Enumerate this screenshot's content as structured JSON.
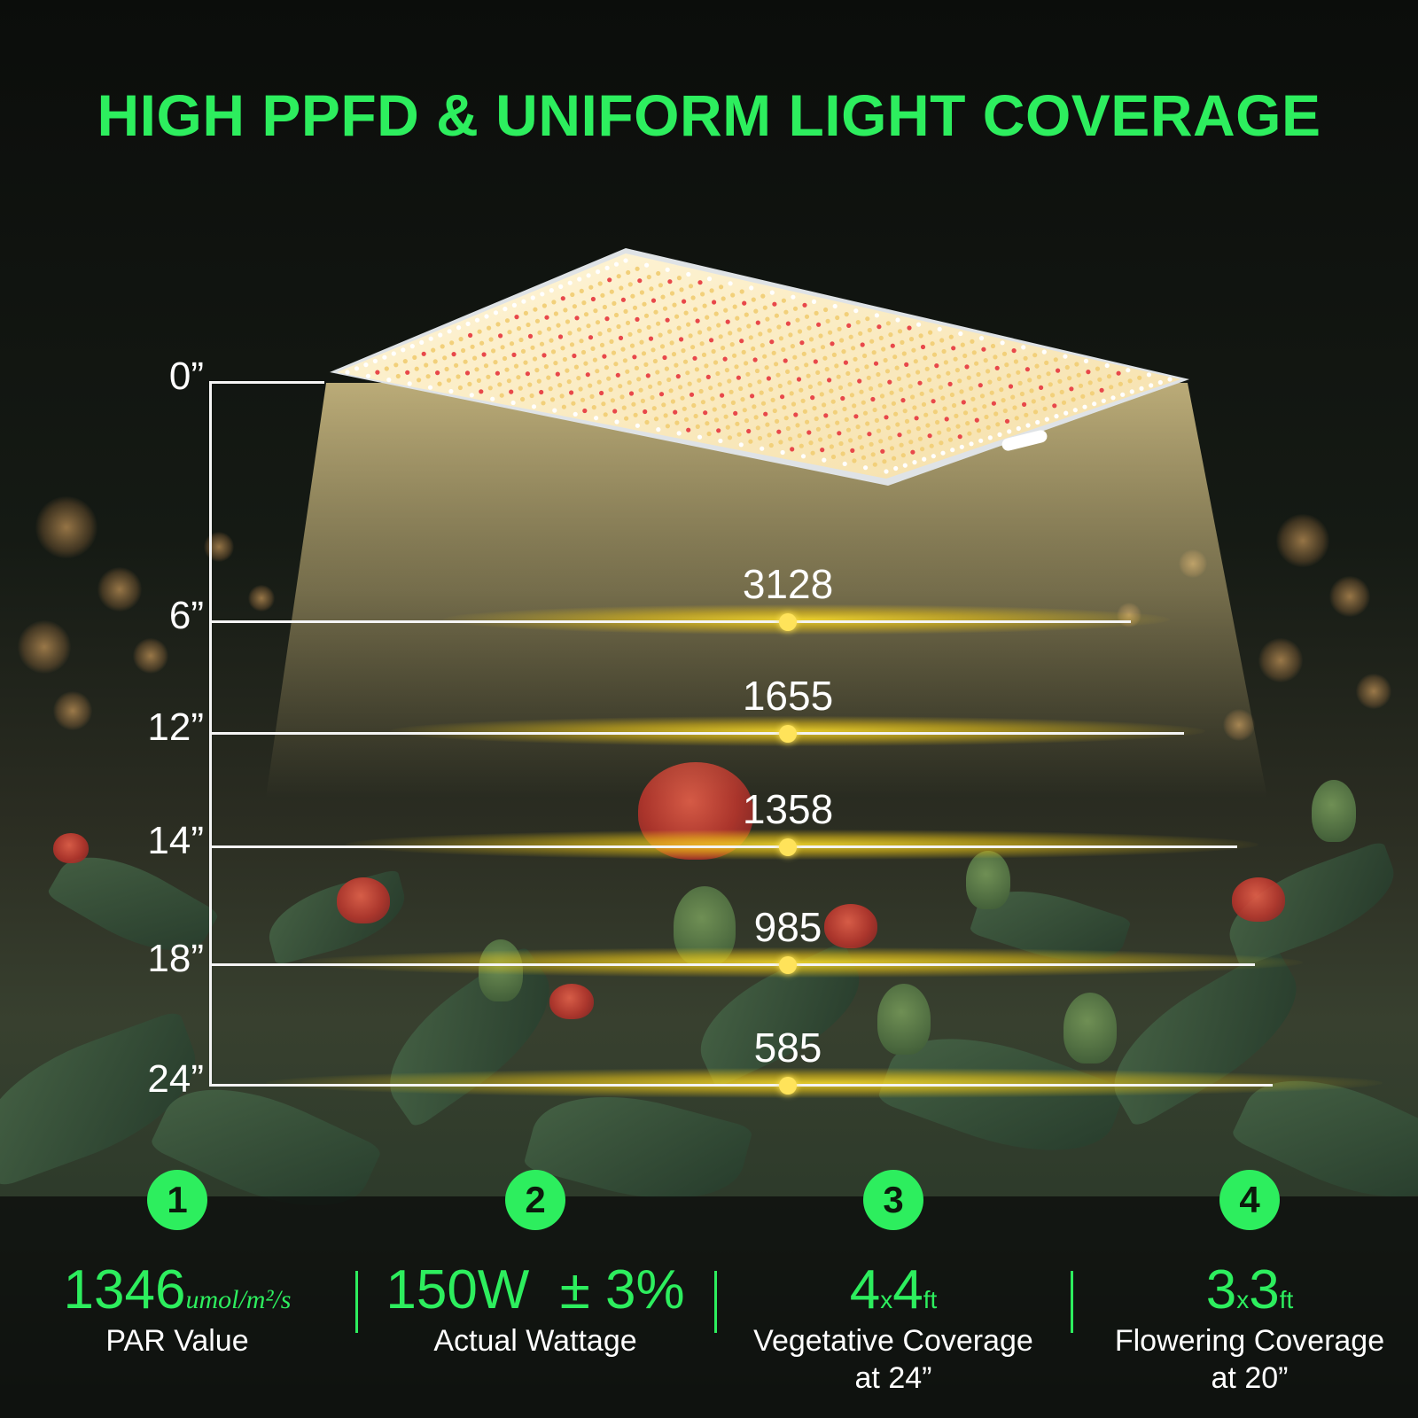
{
  "title": "HIGH PPFD & UNIFORM LIGHT COVERAGE",
  "colors": {
    "accent": "#2dee5e",
    "glow": "#ffe35a"
  },
  "measurements": [
    {
      "distance": "0”"
    },
    {
      "distance": "6”",
      "ppfd": "3128"
    },
    {
      "distance": "12”",
      "ppfd": "1655"
    },
    {
      "distance": "14”",
      "ppfd": "1358"
    },
    {
      "distance": "18”",
      "ppfd": "985"
    },
    {
      "distance": "24”",
      "ppfd": "585"
    }
  ],
  "specs": [
    {
      "number": "1",
      "value": "1346",
      "unit": "umol/m²/s",
      "label": "PAR  Value"
    },
    {
      "number": "2",
      "value": "150W  ± 3%",
      "label": "Actual Wattage"
    },
    {
      "number": "3",
      "value_a": "4",
      "x": "x",
      "value_b": "4",
      "unit": "ft",
      "label_line1": "Vegetative Coverage",
      "label_line2": "at 24”"
    },
    {
      "number": "4",
      "value_a": "3",
      "x": "x",
      "value_b": "3",
      "unit": "ft",
      "label_line1": "Flowering Coverage",
      "label_line2": "at 20”"
    }
  ]
}
